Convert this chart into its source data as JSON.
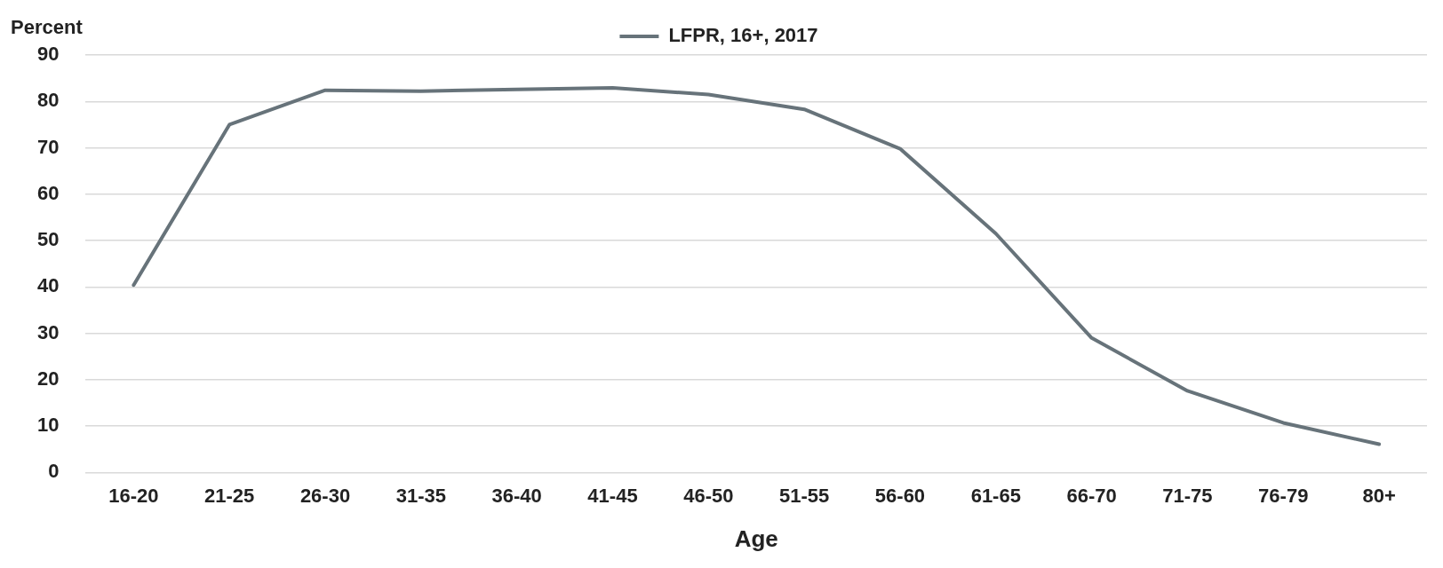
{
  "chart_data": {
    "type": "line",
    "ylabel": "Percent",
    "xlabel": "Age",
    "categories": [
      "16-20",
      "21-25",
      "26-30",
      "31-35",
      "36-40",
      "41-45",
      "46-50",
      "51-55",
      "56-60",
      "61-65",
      "66-70",
      "71-75",
      "76-79",
      "80+"
    ],
    "series": [
      {
        "name": "LFPR, 16+, 2017",
        "color": "#67737a",
        "values": [
          40.4,
          75.0,
          82.4,
          82.2,
          82.6,
          82.9,
          81.5,
          78.3,
          69.8,
          51.5,
          29.0,
          17.6,
          10.7,
          6.1
        ]
      }
    ],
    "ylim": [
      0,
      90
    ],
    "yticks": [
      0,
      10,
      20,
      30,
      40,
      50,
      60,
      70,
      80,
      90
    ],
    "grid": "y",
    "legend": "top",
    "line_style": "solid"
  }
}
